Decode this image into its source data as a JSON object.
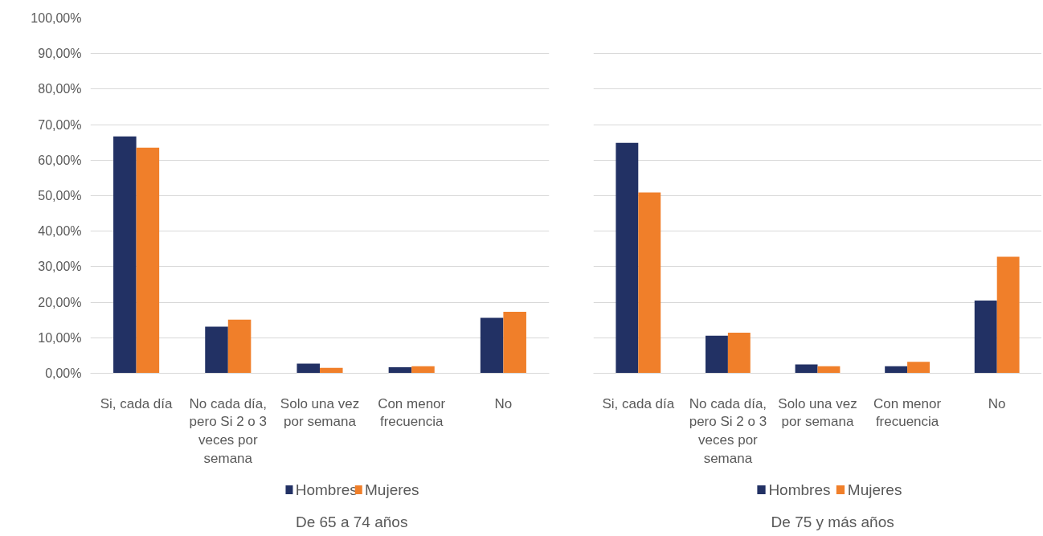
{
  "chart_data": [
    {
      "type": "bar",
      "title": "De 65 a 74 años",
      "categories": [
        "Si, cada día",
        "No cada día, pero Si 2 o 3 veces por semana",
        "Solo una vez por semana",
        "Con menor frecuencia",
        "No"
      ],
      "series": [
        {
          "name": "Hombres",
          "color": "#223164",
          "values": [
            66.7,
            13.1,
            2.7,
            1.7,
            15.6
          ]
        },
        {
          "name": "Mujeres",
          "color": "#f07f2a",
          "values": [
            63.5,
            15.1,
            1.5,
            2.0,
            17.3
          ]
        }
      ],
      "ylim": [
        0,
        100
      ],
      "yticks": [
        {
          "value": 0,
          "label": "0,00%"
        },
        {
          "value": 10,
          "label": "10,00%"
        },
        {
          "value": 20,
          "label": "20,00%"
        },
        {
          "value": 30,
          "label": "30,00%"
        },
        {
          "value": 40,
          "label": "40,00%"
        },
        {
          "value": 50,
          "label": "50,00%"
        },
        {
          "value": 60,
          "label": "60,00%"
        },
        {
          "value": 70,
          "label": "70,00%"
        },
        {
          "value": 80,
          "label": "80,00%"
        },
        {
          "value": 90,
          "label": "90,00%"
        },
        {
          "value": 100,
          "label": "100,00%"
        }
      ],
      "grid": "y",
      "legend": "bottom"
    },
    {
      "type": "bar",
      "title": "De 75 y más años",
      "categories": [
        "Si, cada día",
        "No cada día, pero Si 2 o 3 veces por semana",
        "Solo una vez por semana",
        "Con menor frecuencia",
        "No"
      ],
      "series": [
        {
          "name": "Hombres",
          "color": "#223164",
          "values": [
            64.9,
            10.6,
            2.5,
            2.0,
            20.5
          ]
        },
        {
          "name": "Mujeres",
          "color": "#f07f2a",
          "values": [
            50.9,
            11.4,
            2.0,
            3.2,
            32.8
          ]
        }
      ],
      "ylim": [
        0,
        100
      ],
      "yticks": [
        {
          "value": 0,
          "label": "0,00%"
        },
        {
          "value": 10,
          "label": "10,00%"
        },
        {
          "value": 20,
          "label": "20,00%"
        },
        {
          "value": 30,
          "label": "30,00%"
        },
        {
          "value": 40,
          "label": "40,00%"
        },
        {
          "value": 50,
          "label": "50,00%"
        },
        {
          "value": 60,
          "label": "60,00%"
        },
        {
          "value": 70,
          "label": "70,00%"
        },
        {
          "value": 80,
          "label": "80,00%"
        },
        {
          "value": 90,
          "label": "90,00%"
        },
        {
          "value": 100,
          "label": "100,00%"
        }
      ],
      "grid": "y",
      "legend": "bottom",
      "tick_labels": "x"
    }
  ]
}
